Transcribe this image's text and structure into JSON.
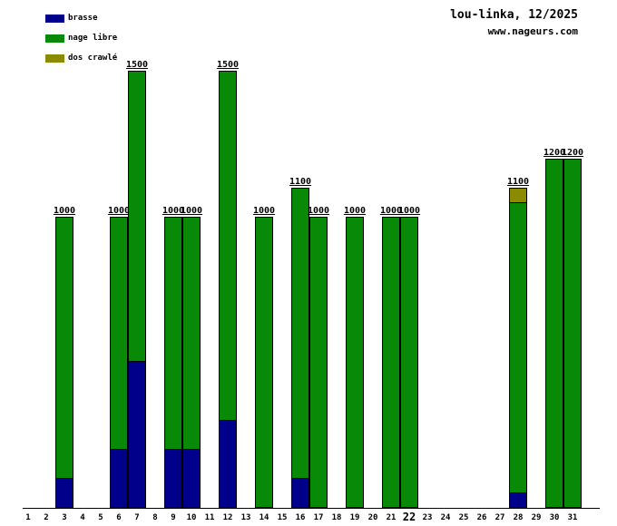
{
  "header": {
    "title": "lou-linka, 12/2025",
    "website": "www.nageurs.com"
  },
  "legend": {
    "items": [
      {
        "label": "brasse",
        "color": "#00008B"
      },
      {
        "label": "nage libre",
        "color": "#088A08"
      },
      {
        "label": "dos crawlé",
        "color": "#8B8B00"
      }
    ]
  },
  "chart_data": {
    "type": "bar",
    "stacked": true,
    "title": "lou-linka, 12/2025",
    "subtitle": "www.nageurs.com",
    "categories": [
      1,
      2,
      3,
      4,
      5,
      6,
      7,
      8,
      9,
      10,
      11,
      12,
      13,
      14,
      15,
      16,
      17,
      18,
      19,
      20,
      21,
      22,
      23,
      24,
      25,
      26,
      27,
      28,
      29,
      30,
      31
    ],
    "highlighted_category": 22,
    "series": [
      {
        "name": "brasse",
        "color": "#00008B",
        "values": [
          0,
          0,
          100,
          0,
          0,
          200,
          500,
          0,
          200,
          200,
          0,
          300,
          0,
          0,
          0,
          100,
          0,
          0,
          0,
          0,
          0,
          0,
          0,
          0,
          0,
          0,
          0,
          50,
          0,
          0,
          0
        ]
      },
      {
        "name": "nage libre",
        "color": "#088A08",
        "values": [
          0,
          0,
          900,
          0,
          0,
          800,
          1000,
          0,
          800,
          800,
          0,
          1200,
          0,
          1000,
          0,
          1000,
          1000,
          0,
          1000,
          0,
          1000,
          1000,
          0,
          0,
          0,
          0,
          0,
          1000,
          0,
          1200,
          1200
        ]
      },
      {
        "name": "dos crawlé",
        "color": "#8B8B00",
        "values": [
          0,
          0,
          0,
          0,
          0,
          0,
          0,
          0,
          0,
          0,
          0,
          0,
          0,
          0,
          0,
          0,
          0,
          0,
          0,
          0,
          0,
          0,
          0,
          0,
          0,
          0,
          0,
          50,
          0,
          0,
          0
        ]
      }
    ],
    "totals": [
      null,
      null,
      1000,
      null,
      null,
      1000,
      1500,
      null,
      1000,
      1000,
      null,
      1500,
      null,
      1000,
      null,
      1100,
      1000,
      null,
      1000,
      null,
      1000,
      1000,
      null,
      null,
      null,
      null,
      null,
      1100,
      null,
      1200,
      1200
    ],
    "ylim": [
      0,
      1700
    ],
    "grid": false,
    "legend_position": "top-left"
  }
}
